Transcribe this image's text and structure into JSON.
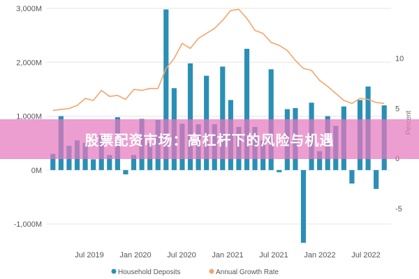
{
  "chart_data": {
    "type": "bar+line",
    "title": "",
    "left_axis": {
      "ticks": [
        "3,000M",
        "2,000M",
        "1,000M",
        "0M",
        "-1,000M"
      ],
      "ylim": [
        -1400,
        3000
      ]
    },
    "right_axis": {
      "label": "Percent",
      "ticks": [
        "10",
        "5",
        "0",
        "-5"
      ],
      "ylim": [
        -8.7,
        15
      ]
    },
    "x_tick_labels": [
      "Jul 2019",
      "Jan 2020",
      "Jul 2020",
      "Jan 2021",
      "Jul 2021",
      "Jan 2022",
      "Jul 2022"
    ],
    "series": [
      {
        "name": "Household Deposits",
        "type": "bar",
        "color": "#2a8fb5",
        "values": [
          300,
          1000,
          450,
          550,
          500,
          200,
          650,
          280,
          980,
          -80,
          280,
          950,
          500,
          930,
          2980,
          1520,
          860,
          1980,
          850,
          1750,
          850,
          1920,
          1300,
          800,
          2250,
          800,
          550,
          1870,
          -40,
          1130,
          1150,
          -1350,
          1250,
          350,
          1000,
          820,
          1180,
          -250,
          1300,
          1550,
          -350,
          1200
        ]
      },
      {
        "name": "Annual Growth Rate",
        "type": "line",
        "color": "#f5a46a",
        "values": [
          4.8,
          4.9,
          5.0,
          5.3,
          6.0,
          5.8,
          6.8,
          6.2,
          6.3,
          5.9,
          6.9,
          6.8,
          7.0,
          7.0,
          9.0,
          10.0,
          11.5,
          11.0,
          12.0,
          12.5,
          13.0,
          13.8,
          14.8,
          14.9,
          14.0,
          12.8,
          12.5,
          11.6,
          11.3,
          10.8,
          9.8,
          9.0,
          8.8,
          7.8,
          7.2,
          6.5,
          5.8,
          5.5,
          6.0,
          5.9,
          5.6,
          5.5
        ]
      }
    ]
  },
  "banner": {
    "text": "股票配资市场：高杠杆下的风险与机遇"
  },
  "colors": {
    "bar": "#2a8fb5",
    "line": "#f5a46a",
    "grid": "#e6e6e6",
    "banner": "#e478be"
  }
}
